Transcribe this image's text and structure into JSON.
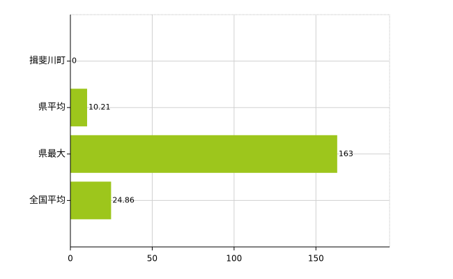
{
  "chart_data": {
    "type": "hbar",
    "categories": [
      "揖斐川町",
      "県平均",
      "県最大",
      "全国平均"
    ],
    "values": [
      0,
      10.21,
      163,
      24.86
    ],
    "color": "#9dc61c",
    "xlim": [
      0,
      195
    ],
    "xticks": [
      0,
      50,
      100,
      150
    ],
    "grid": true
  }
}
